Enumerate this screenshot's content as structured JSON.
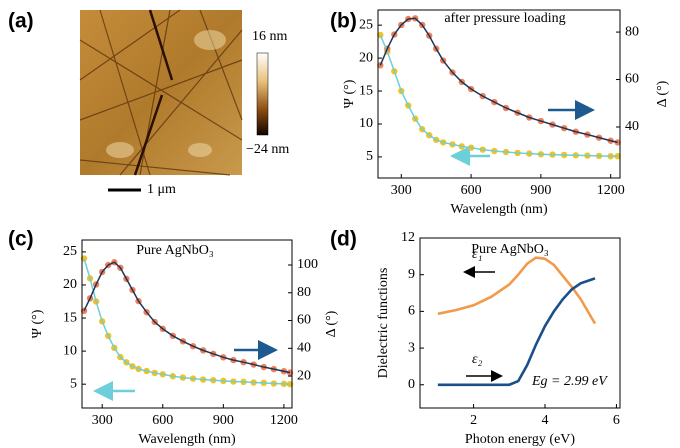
{
  "chart_data": [
    {
      "type": "image",
      "panel_label": "(a)",
      "colorbar_labels": [
        "16 nm",
        "−24 nm"
      ],
      "scale_bar_label": "1 μm"
    },
    {
      "type": "dual-axis",
      "panel_label": "(b)",
      "annotation": "after pressure loading",
      "x_label": "Wavelength (nm)",
      "y_label": "Ψ (°)",
      "y2_label": "Δ (°)",
      "x": [
        210,
        240,
        270,
        300,
        330,
        360,
        390,
        420,
        450,
        480,
        520,
        560,
        600,
        650,
        700,
        750,
        800,
        850,
        900,
        950,
        1000,
        1050,
        1100,
        1150,
        1200,
        1230
      ],
      "xlim": [
        200,
        1240
      ],
      "xticks": [
        300,
        600,
        900,
        1200
      ],
      "ylim": [
        1.8,
        27.3
      ],
      "yticks": [
        5,
        10,
        15,
        20,
        25
      ],
      "y2lim": [
        18.5,
        89.3
      ],
      "y2ticks": [
        40,
        60,
        80
      ],
      "series": [
        {
          "color": "#f7c21a",
          "marker": "circle",
          "values": [
            23.5,
            21,
            18,
            15,
            12.8,
            10.8,
            9.2,
            8.3,
            7.6,
            7.2,
            6.9,
            6.6,
            6.4,
            6.1,
            5.9,
            5.75,
            5.6,
            5.5,
            5.4,
            5.35,
            5.3,
            5.25,
            5.2,
            5.15,
            5.1,
            5.1
          ]
        },
        {
          "color": "#f0805a",
          "marker": "circle",
          "axis": "y2",
          "values": [
            66,
            73,
            79,
            83,
            85.5,
            85.8,
            83,
            78.5,
            73,
            68,
            63,
            59,
            56,
            53,
            50.5,
            48,
            46,
            44,
            42.5,
            41,
            39.5,
            38,
            36.8,
            35.5,
            34.2,
            33.5
          ]
        },
        {
          "color": "#6ccfd9",
          "marker": "none",
          "values": [
            23.5,
            21,
            18,
            15,
            12.8,
            10.8,
            9.2,
            8.3,
            7.6,
            7.2,
            6.9,
            6.6,
            6.4,
            6.1,
            5.9,
            5.75,
            5.6,
            5.5,
            5.4,
            5.35,
            5.3,
            5.25,
            5.2,
            5.15,
            5.1,
            5.1
          ]
        },
        {
          "color": "#1d3558",
          "marker": "none",
          "axis": "y2",
          "values": [
            66,
            73,
            79,
            83,
            85.5,
            85.8,
            83,
            78.5,
            73,
            68,
            63,
            59,
            56,
            53,
            50.5,
            48,
            46,
            44,
            42.5,
            41,
            39.5,
            38,
            36.8,
            35.5,
            34.2,
            33.5
          ]
        }
      ]
    },
    {
      "type": "dual-axis",
      "panel_label": "(c)",
      "annotation": "Pure AgNbO₃",
      "x_label": "Wavelength (nm)",
      "y_label": "Ψ (°)",
      "y2_label": "Δ (°)",
      "x": [
        210,
        240,
        270,
        300,
        330,
        360,
        390,
        420,
        450,
        480,
        520,
        560,
        600,
        650,
        700,
        750,
        800,
        850,
        900,
        950,
        1000,
        1050,
        1100,
        1150,
        1200,
        1230
      ],
      "xlim": [
        200,
        1240
      ],
      "xticks": [
        300,
        600,
        900,
        1200
      ],
      "ylim": [
        1.4,
        26.8
      ],
      "yticks": [
        5,
        10,
        15,
        20,
        25
      ],
      "y2lim": [
        -3,
        118
      ],
      "y2ticks": [
        20,
        40,
        60,
        80,
        100
      ],
      "series": [
        {
          "color": "#f7c21a",
          "marker": "circle",
          "values": [
            24,
            21,
            17.5,
            14.5,
            12.3,
            10.5,
            9.1,
            8.3,
            7.7,
            7.3,
            7.0,
            6.7,
            6.5,
            6.2,
            6.0,
            5.85,
            5.7,
            5.6,
            5.5,
            5.4,
            5.35,
            5.25,
            5.2,
            5.1,
            5.05,
            5.0
          ]
        },
        {
          "color": "#f0805a",
          "marker": "circle",
          "axis": "y2",
          "values": [
            67,
            76,
            86,
            95,
            100,
            102,
            98,
            90,
            82,
            74,
            66,
            59,
            54,
            49,
            45,
            41.5,
            38.5,
            36,
            33.5,
            31.5,
            30,
            28.3,
            26.5,
            25,
            23.5,
            22.5
          ]
        },
        {
          "color": "#6ccfd9",
          "marker": "none",
          "values": [
            24,
            21,
            17.5,
            14.5,
            12.3,
            10.5,
            9.1,
            8.3,
            7.7,
            7.3,
            7.0,
            6.7,
            6.5,
            6.2,
            6.0,
            5.85,
            5.7,
            5.6,
            5.5,
            5.4,
            5.35,
            5.25,
            5.2,
            5.1,
            5.05,
            5.0
          ]
        },
        {
          "color": "#1d3558",
          "marker": "none",
          "axis": "y2",
          "values": [
            67,
            76,
            86,
            95,
            100,
            102,
            98,
            90,
            82,
            74,
            66,
            59,
            54,
            49,
            45,
            41.5,
            38.5,
            36,
            33.5,
            31.5,
            30,
            28.3,
            26.5,
            25,
            23.5,
            22.5
          ]
        }
      ]
    },
    {
      "type": "line",
      "panel_label": "(d)",
      "annotation": "Pure AgNbO₃",
      "note": "Eg = 2.99 eV",
      "x_label": "Photon energy (eV)",
      "y_label": "Dielectric functions",
      "x": [
        1,
        1.5,
        2,
        2.5,
        3,
        3.25,
        3.5,
        3.75,
        4,
        4.25,
        4.5,
        4.75,
        5,
        5.4
      ],
      "xlim": [
        0.5,
        6.1
      ],
      "xticks": [
        2,
        4,
        6
      ],
      "ylim": [
        -1.9,
        12
      ],
      "yticks": [
        0,
        3,
        6,
        9,
        12
      ],
      "series": [
        {
          "name": "ε₁",
          "color": "#f29a4a",
          "marker": "none",
          "values": [
            5.8,
            6.1,
            6.5,
            7.2,
            8.2,
            9.0,
            9.9,
            10.4,
            10.3,
            9.8,
            8.9,
            8.0,
            7.0,
            5.0
          ]
        },
        {
          "name": "ε₂",
          "color": "#1a4f8a",
          "marker": "none",
          "values": [
            0,
            0,
            0,
            0,
            0,
            0.3,
            1.6,
            3.3,
            4.8,
            6.0,
            7.0,
            7.8,
            8.3,
            8.7
          ]
        }
      ]
    }
  ]
}
